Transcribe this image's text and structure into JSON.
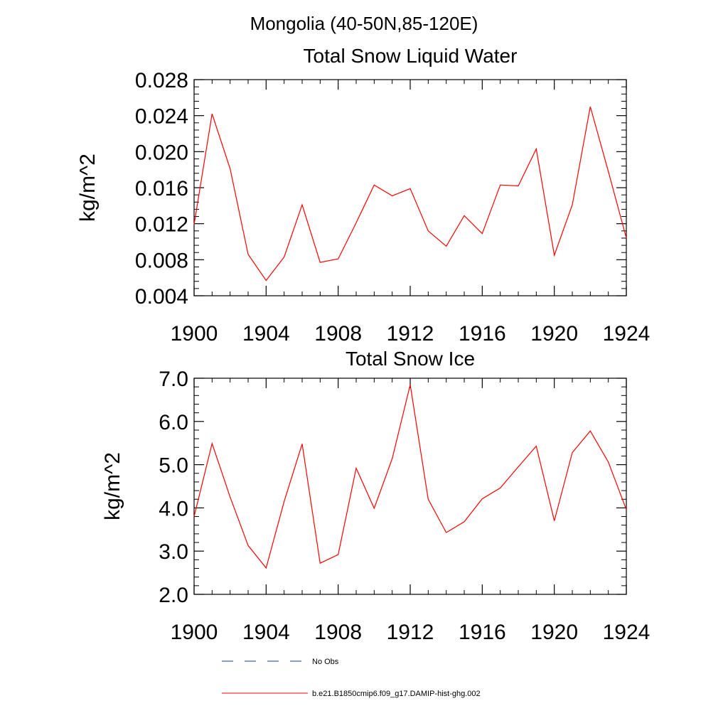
{
  "figure": {
    "main_title": "Mongolia (40-50N,85-120E)",
    "legend": [
      {
        "label": "No Obs",
        "color": "#1f3c7a",
        "style": "dashed"
      },
      {
        "label": "b.e21.B1850cmip6.f09_g17.DAMIP-hist-ghg.002",
        "color": "#ff0000",
        "style": "solid"
      }
    ]
  },
  "chart_data": [
    {
      "type": "line",
      "title": "Total Snow Liquid Water",
      "xlabel": "",
      "ylabel": "kg/m^2",
      "xlim": [
        1900,
        1924
      ],
      "ylim": [
        0.004,
        0.028
      ],
      "xticks": [
        1900,
        1904,
        1908,
        1912,
        1916,
        1920,
        1924
      ],
      "xtick_labels": [
        "1900",
        "1904",
        "1908",
        "1912",
        "1916",
        "1920",
        "1924"
      ],
      "yticks": [
        0.004,
        0.008,
        0.012,
        0.016,
        0.02,
        0.024,
        0.028
      ],
      "ytick_labels": [
        "0.004",
        "0.008",
        "0.012",
        "0.016",
        "0.020",
        "0.024",
        "0.028"
      ],
      "grid": false,
      "x": [
        1900,
        1901,
        1902,
        1903,
        1904,
        1905,
        1906,
        1907,
        1908,
        1909,
        1910,
        1911,
        1912,
        1913,
        1914,
        1915,
        1916,
        1917,
        1918,
        1919,
        1920,
        1921,
        1922,
        1923,
        1924
      ],
      "series": [
        {
          "color": "#ff0000",
          "values": [
            0.0119,
            0.0242,
            0.0181,
            0.0086,
            0.0057,
            0.0083,
            0.0141,
            0.0077,
            0.0081,
            0.0121,
            0.0163,
            0.0151,
            0.0159,
            0.0112,
            0.0095,
            0.0129,
            0.0109,
            0.0163,
            0.0162,
            0.0203,
            0.0085,
            0.0141,
            0.025,
            0.0178,
            0.0104
          ]
        }
      ]
    },
    {
      "type": "line",
      "title": "Total Snow Ice",
      "xlabel": "",
      "ylabel": "kg/m^2",
      "xlim": [
        1900,
        1924
      ],
      "ylim": [
        2.0,
        7.0
      ],
      "xticks": [
        1900,
        1904,
        1908,
        1912,
        1916,
        1920,
        1924
      ],
      "xtick_labels": [
        "1900",
        "1904",
        "1908",
        "1912",
        "1916",
        "1920",
        "1924"
      ],
      "yticks": [
        2.0,
        3.0,
        4.0,
        5.0,
        6.0,
        7.0
      ],
      "ytick_labels": [
        "2.0",
        "3.0",
        "4.0",
        "5.0",
        "6.0",
        "7.0"
      ],
      "grid": false,
      "x": [
        1900,
        1901,
        1902,
        1903,
        1904,
        1905,
        1906,
        1907,
        1908,
        1909,
        1910,
        1911,
        1912,
        1913,
        1914,
        1915,
        1916,
        1917,
        1918,
        1919,
        1920,
        1921,
        1922,
        1923,
        1924
      ],
      "series": [
        {
          "color": "#ff0000",
          "values": [
            3.8,
            5.49,
            4.25,
            3.13,
            2.61,
            4.15,
            5.48,
            2.72,
            2.92,
            4.92,
            3.99,
            5.14,
            6.85,
            4.2,
            3.43,
            3.68,
            4.21,
            4.46,
            4.95,
            5.43,
            3.7,
            5.28,
            5.78,
            5.06,
            3.96
          ]
        }
      ]
    }
  ]
}
